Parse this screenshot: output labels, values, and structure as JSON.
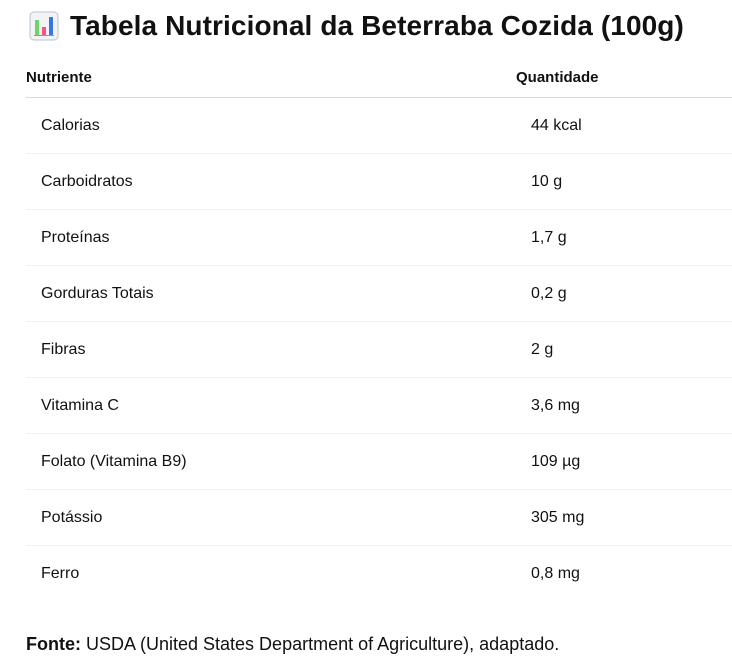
{
  "title": "Tabela Nutricional da Beterraba Cozida (100g)",
  "title_icon": "bar-chart-icon",
  "table": {
    "headers": [
      "Nutriente",
      "Quantidade"
    ],
    "rows": [
      {
        "nutrient": "Calorias",
        "amount": "44 kcal"
      },
      {
        "nutrient": "Carboidratos",
        "amount": "10 g"
      },
      {
        "nutrient": "Proteínas",
        "amount": "1,7 g"
      },
      {
        "nutrient": "Gorduras Totais",
        "amount": "0,2 g"
      },
      {
        "nutrient": "Fibras",
        "amount": "2 g"
      },
      {
        "nutrient": "Vitamina C",
        "amount": "3,6 mg"
      },
      {
        "nutrient": "Folato (Vitamina B9)",
        "amount": "109 µg"
      },
      {
        "nutrient": "Potássio",
        "amount": "305 mg"
      },
      {
        "nutrient": "Ferro",
        "amount": "0,8 mg"
      }
    ]
  },
  "source": {
    "label": "Fonte:",
    "text": " USDA (United States Department of Agriculture), adaptado."
  }
}
